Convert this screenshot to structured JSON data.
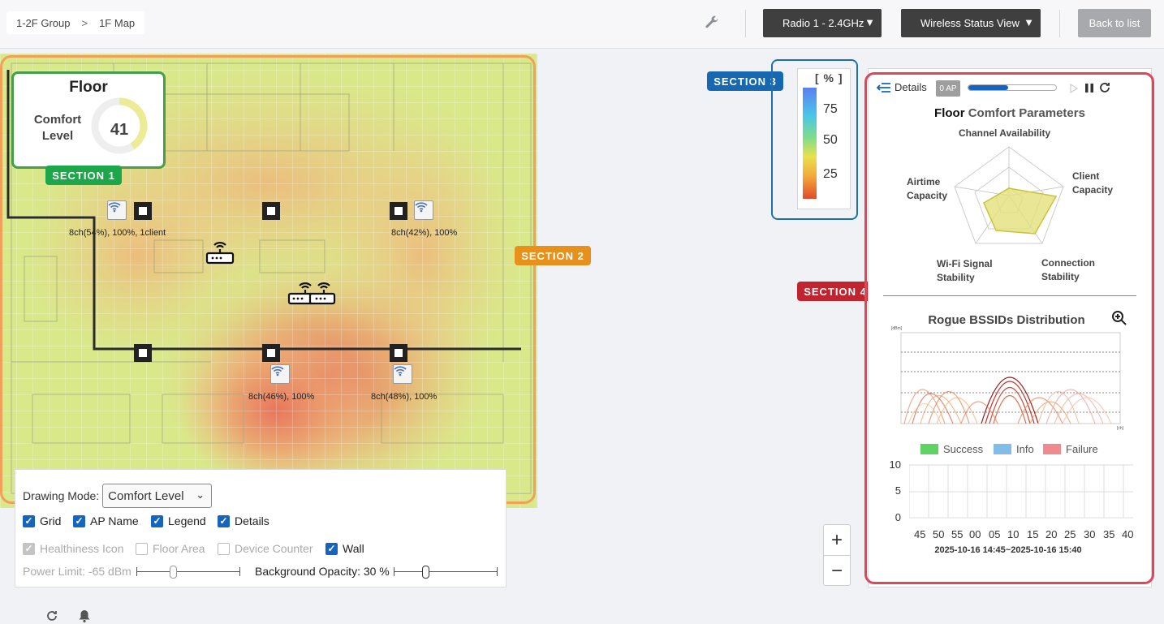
{
  "breadcrumb": {
    "group": "1-2F Group",
    "separator": ">",
    "page": "1F Map"
  },
  "toolbar": {
    "radio_select": "Radio 1 - 2.4GHz",
    "view_select": "Wireless Status View",
    "back_label": "Back to list",
    "dropdown_arrow": "▼"
  },
  "floor_card": {
    "title": "Floor",
    "metric_label": "Comfort Level",
    "value": "41",
    "gauge_fraction": 0.41
  },
  "sections": {
    "s1": "SECTION 1",
    "s2": "SECTION 2",
    "s3": "SECTION 3",
    "s4": "SECTION 4"
  },
  "section_colors": {
    "s1": "#1ca84a",
    "s2": "#e8901c",
    "s3": "#1668b0",
    "s4": "#c0242f"
  },
  "access_points": [
    {
      "label": "8ch(54%), 100%, 1client"
    },
    {
      "label": "8ch(42%), 100%"
    },
    {
      "label": "8ch(46%), 100%"
    },
    {
      "label": "8ch(48%), 100%"
    }
  ],
  "legend": {
    "unit": "[ % ]",
    "ticks": [
      "75",
      "50",
      "25"
    ]
  },
  "panel": {
    "details": "Details",
    "ap_badge": "0 AP",
    "progress_fraction": 0.45,
    "title_prefix": "Floor",
    "title_rest": " Comfort Parameters",
    "radar_axes": [
      "Channel Availability",
      "Client Capacity",
      "Connection Stability",
      "Wi-Fi Signal Stability",
      "Airtime Capacity"
    ],
    "rogue_title": "Rogue BSSIDs Distribution",
    "rogue_axis": {
      "y_unit": "[dBm]",
      "x_unit": "[ch]"
    },
    "status_legend": [
      "Success",
      "Info",
      "Failure"
    ],
    "status_colors": [
      "#5fd465",
      "#82bde8",
      "#ef8a8e"
    ],
    "y_ticks": [
      "10",
      "5",
      "0"
    ],
    "x_ticks": [
      "45",
      "50",
      "55",
      "00",
      "05",
      "10",
      "15",
      "20",
      "25",
      "30",
      "35",
      "40"
    ],
    "range": "2025-10-16 14:45~2025-10-16 15:40"
  },
  "zoom": {
    "in": "+",
    "out": "−"
  },
  "options": {
    "drawing_mode_label": "Drawing Mode:",
    "drawing_mode_value": "Comfort Level",
    "checkboxes": [
      {
        "label": "Grid",
        "checked": true
      },
      {
        "label": "AP Name",
        "checked": true
      },
      {
        "label": "Legend",
        "checked": true
      },
      {
        "label": "Details",
        "checked": true
      },
      {
        "label": "Healthiness Icon",
        "checked": true,
        "disabled": true
      },
      {
        "label": "Floor Area",
        "checked": false,
        "disabled": true
      },
      {
        "label": "Device Counter",
        "checked": false,
        "disabled": true
      },
      {
        "label": "Wall",
        "checked": true
      }
    ],
    "power_limit": "Power Limit: -65 dBm",
    "background_opacity": "Background Opacity: 30 %"
  }
}
